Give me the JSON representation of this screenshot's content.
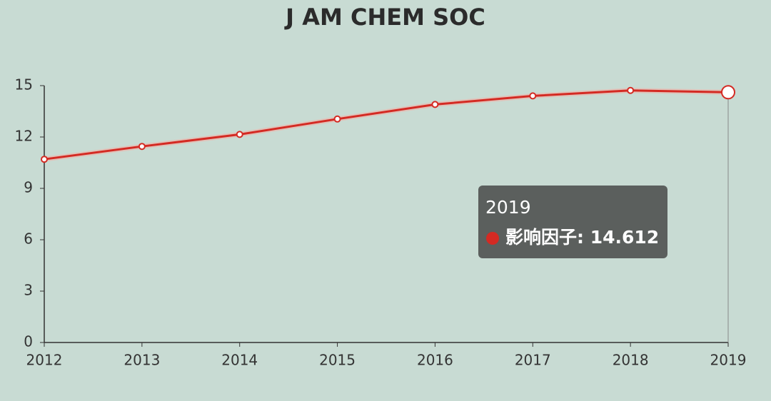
{
  "chart_data": {
    "type": "line",
    "title": "J AM CHEM SOC",
    "categories": [
      "2012",
      "2013",
      "2014",
      "2015",
      "2016",
      "2017",
      "2018",
      "2019"
    ],
    "series": [
      {
        "name": "影响因子",
        "color": "#d42a23",
        "values": [
          10.7,
          11.45,
          12.15,
          13.05,
          13.9,
          14.4,
          14.72,
          14.612
        ]
      }
    ],
    "ylim": [
      0,
      15
    ],
    "yticks": [
      0,
      3,
      6,
      9,
      12,
      15
    ],
    "grid": false,
    "tooltip": {
      "index": 7,
      "label": "影响因子: 14.612"
    }
  }
}
